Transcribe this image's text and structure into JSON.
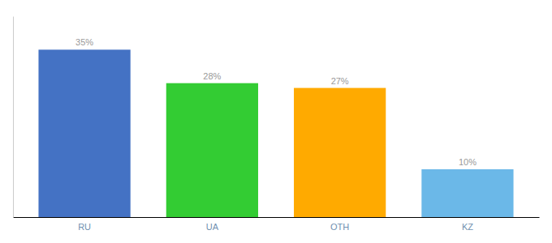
{
  "chart_data": {
    "type": "bar",
    "categories": [
      "RU",
      "UA",
      "OTH",
      "KZ"
    ],
    "values": [
      35,
      28,
      27,
      10
    ],
    "value_labels": [
      "35%",
      "28%",
      "27%",
      "10%"
    ],
    "data_labels": true,
    "colors": [
      "#4472c4",
      "#33cc33",
      "#ffaa00",
      "#6bb8e8"
    ],
    "ylim": [
      0,
      42
    ],
    "grid": false,
    "tick_labels": "x"
  }
}
